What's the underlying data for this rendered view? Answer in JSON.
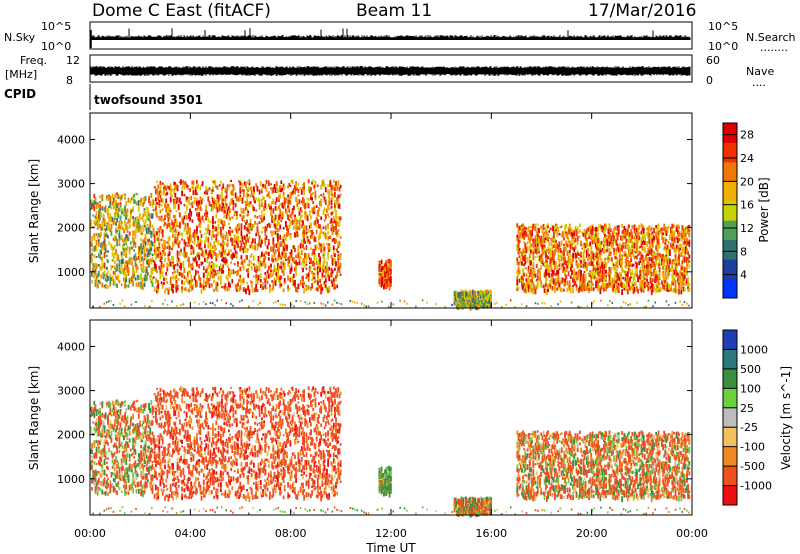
{
  "header": {
    "station": "Dome C East (fitACF)",
    "beam": "Beam 11",
    "date": "17/Mar/2016"
  },
  "panel_labels": {
    "nsky": "N.Sky",
    "nsearch": "N.Search",
    "nsearch_dots": "........",
    "freq": "Freq.",
    "freq_unit": "[MHz]",
    "nave": "Nave",
    "nave_dots": "....",
    "cpid": "CPID",
    "cpid_value": "twofsound 3501"
  },
  "noise_axis": {
    "left_ticks": [
      "10^5",
      "10^0"
    ],
    "right_ticks": [
      "10^5",
      "10^0"
    ]
  },
  "freq_axis": {
    "left_ticks": [
      "12",
      "8"
    ],
    "right_ticks": [
      "60",
      "0"
    ]
  },
  "colors": {
    "power_scale": [
      "#0033ff",
      "#1f3fa0",
      "#2f6f70",
      "#4fa05a",
      "#c8d200",
      "#f0b000",
      "#f07800",
      "#f03000",
      "#e00000"
    ],
    "velocity_scale": [
      "#ee1010",
      "#f05020",
      "#f08a20",
      "#f2c260",
      "#bdbdbd",
      "#6ad040",
      "#3a9040",
      "#2a7a80",
      "#203fb0"
    ]
  },
  "chart_data": [
    {
      "type": "heatmap",
      "name": "power",
      "xlabel": "Time UT",
      "ylabel": "Slant Range [km]",
      "x_ticks": [
        "00:00",
        "04:00",
        "08:00",
        "12:00",
        "16:00",
        "20:00",
        "00:00"
      ],
      "xlim_hours": [
        0,
        24
      ],
      "ylim_km": [
        180,
        4600
      ],
      "y_ticks": [
        1000,
        2000,
        3000,
        4000
      ],
      "colorbar": {
        "label": "Power [dB]",
        "ticks": [
          4,
          8,
          12,
          16,
          20,
          24,
          28
        ],
        "range": [
          0,
          30
        ]
      },
      "echo_regions": [
        {
          "t_start": 0.0,
          "t_end": 2.5,
          "r_min": 700,
          "r_max": 2800,
          "typical": 16
        },
        {
          "t_start": 2.5,
          "t_end": 10.0,
          "r_min": 600,
          "r_max": 3100,
          "typical": 22
        },
        {
          "t_start": 11.5,
          "t_end": 12.0,
          "r_min": 700,
          "r_max": 1300,
          "typical": 24
        },
        {
          "t_start": 14.5,
          "t_end": 16.0,
          "r_min": 250,
          "r_max": 600,
          "typical": 14
        },
        {
          "t_start": 17.0,
          "t_end": 23.9,
          "r_min": 600,
          "r_max": 2100,
          "typical": 22
        }
      ]
    },
    {
      "type": "heatmap",
      "name": "velocity",
      "xlabel": "Time UT",
      "ylabel": "Slant Range [km]",
      "x_ticks": [
        "00:00",
        "04:00",
        "08:00",
        "12:00",
        "16:00",
        "20:00",
        "00:00"
      ],
      "xlim_hours": [
        0,
        24
      ],
      "ylim_km": [
        180,
        4600
      ],
      "y_ticks": [
        1000,
        2000,
        3000,
        4000
      ],
      "colorbar": {
        "label": "Velocity [m s^-1]",
        "ticks": [
          1000,
          500,
          100,
          25,
          -25,
          -100,
          -500,
          -1000
        ]
      },
      "echo_regions": [
        {
          "t_start": 0.0,
          "t_end": 2.5,
          "r_min": 700,
          "r_max": 2800,
          "typical": -100
        },
        {
          "t_start": 2.5,
          "t_end": 10.0,
          "r_min": 600,
          "r_max": 3100,
          "typical": -300
        },
        {
          "t_start": 11.5,
          "t_end": 12.0,
          "r_min": 700,
          "r_max": 1300,
          "typical": 200
        },
        {
          "t_start": 14.5,
          "t_end": 16.0,
          "r_min": 250,
          "r_max": 600,
          "typical": -50
        },
        {
          "t_start": 17.0,
          "t_end": 23.9,
          "r_min": 600,
          "r_max": 2100,
          "typical": -100
        }
      ]
    }
  ]
}
